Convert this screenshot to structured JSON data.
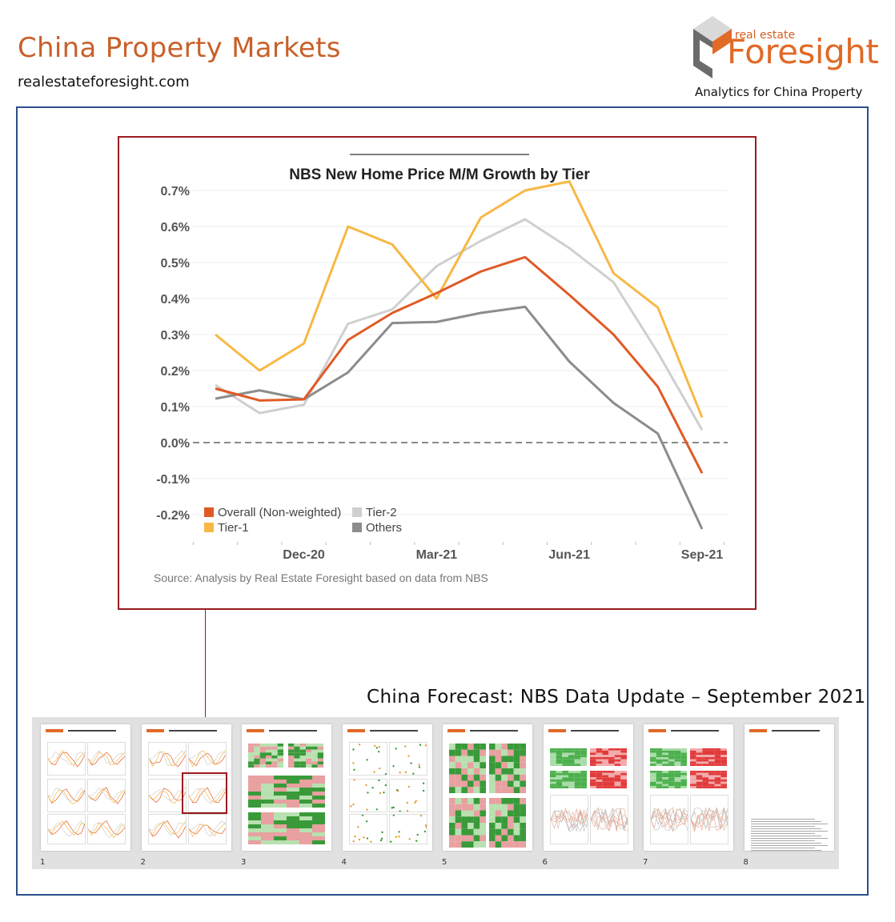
{
  "header": {
    "title": "China Property Markets",
    "url": "realestateforesight.com",
    "logo_small": "real estate",
    "logo_big": "Foresight",
    "tagline": "Analytics for China Property"
  },
  "footer_title": "China Forecast: NBS Data Update – September 2021",
  "thumbnails": [
    {
      "page": "1"
    },
    {
      "page": "2"
    },
    {
      "page": "3"
    },
    {
      "page": "4"
    },
    {
      "page": "5"
    },
    {
      "page": "6"
    },
    {
      "page": "7"
    },
    {
      "page": "8"
    }
  ],
  "colors": {
    "overall": "#e05a26",
    "tier1": "#f7b844",
    "tier2": "#cfcfcf",
    "others": "#8c8c8c",
    "frame_blue": "#2b4f8c",
    "frame_red": "#9b1b1f",
    "brand_orange": "#c8602a"
  },
  "chart_data": {
    "type": "line",
    "title": "NBS New Home Price M/M Growth by Tier",
    "source": "Source: Analysis by Real Estate Foresight based on data from NBS",
    "x": [
      "Oct-20",
      "Nov-20",
      "Dec-20",
      "Jan-21",
      "Feb-21",
      "Mar-21",
      "Apr-21",
      "May-21",
      "Jun-21",
      "Jul-21",
      "Aug-21",
      "Sep-21"
    ],
    "x_tick_labels": [
      {
        "index": 2,
        "label": "Dec-20"
      },
      {
        "index": 5,
        "label": "Mar-21"
      },
      {
        "index": 8,
        "label": "Jun-21"
      },
      {
        "index": 11,
        "label": "Sep-21"
      }
    ],
    "y_ticks": [
      "0.7%",
      "0.6%",
      "0.5%",
      "0.4%",
      "0.3%",
      "0.2%",
      "0.1%",
      "0.0%",
      "-0.1%",
      "-0.2%"
    ],
    "y_tick_values": [
      0.7,
      0.6,
      0.5,
      0.4,
      0.3,
      0.2,
      0.1,
      0.0,
      -0.1,
      -0.2
    ],
    "ylim": [
      -0.28,
      0.72
    ],
    "zero_line": "dashed",
    "grid": true,
    "legend_position": "bottom-left",
    "series": [
      {
        "name": "Overall (Non-weighted)",
        "color": "#e05a26",
        "values": [
          0.15,
          0.117,
          0.12,
          0.285,
          0.36,
          0.415,
          0.475,
          0.515,
          0.41,
          0.3,
          0.155,
          -0.085
        ]
      },
      {
        "name": "Tier-1",
        "color": "#f7b844",
        "values": [
          0.3,
          0.2,
          0.275,
          0.6,
          0.55,
          0.4,
          0.625,
          0.7,
          0.725,
          0.47,
          0.375,
          0.07
        ]
      },
      {
        "name": "Tier-2",
        "color": "#cfcfcf",
        "values": [
          0.16,
          0.082,
          0.105,
          0.33,
          0.37,
          0.49,
          0.56,
          0.62,
          0.54,
          0.445,
          0.25,
          0.035
        ]
      },
      {
        "name": "Others",
        "color": "#8c8c8c",
        "values": [
          0.122,
          0.145,
          0.12,
          0.195,
          0.332,
          0.335,
          0.36,
          0.377,
          0.225,
          0.11,
          0.025,
          -0.24
        ]
      }
    ],
    "legend_order": [
      {
        "series": 0,
        "col": 0,
        "row": 0
      },
      {
        "series": 2,
        "col": 1,
        "row": 0
      },
      {
        "series": 1,
        "col": 0,
        "row": 1
      },
      {
        "series": 3,
        "col": 1,
        "row": 1
      }
    ]
  }
}
